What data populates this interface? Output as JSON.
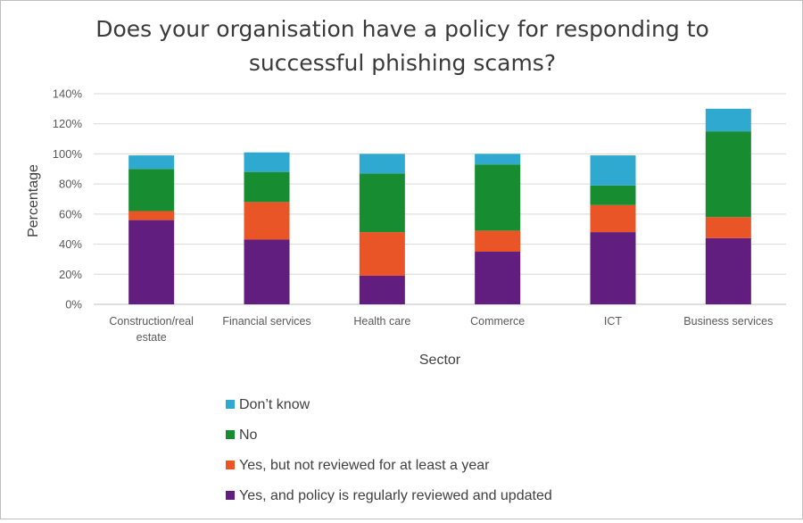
{
  "chart_data": {
    "type": "bar",
    "stacked": true,
    "title": "Does your organisation have a policy for responding to successful phishing scams?",
    "title_lines": [
      "Does your organisation have a policy for responding to",
      "successful phishing scams?"
    ],
    "xlabel": "Sector",
    "ylabel": "Percentage",
    "ylim": [
      0,
      140
    ],
    "ytick_step": 20,
    "ytick_format": "%",
    "grid": true,
    "legend_position": "bottom",
    "categories": [
      "Construction/real estate",
      "Financial services",
      "Health care",
      "Commerce",
      "ICT",
      "Business services"
    ],
    "category_lines": [
      [
        "Construction/real",
        "estate"
      ],
      [
        "Financial services"
      ],
      [
        "Health care"
      ],
      [
        "Commerce"
      ],
      [
        "ICT"
      ],
      [
        "Business services"
      ]
    ],
    "series": [
      {
        "name": "Yes, and policy is regularly reviewed and updated",
        "color": "#621e7e",
        "values": [
          56,
          43,
          19,
          35,
          48,
          44
        ]
      },
      {
        "name": "Yes, but not reviewed for at least a year",
        "color": "#e95526",
        "values": [
          6,
          25,
          29,
          14,
          18,
          14
        ]
      },
      {
        "name": "No",
        "color": "#178c31",
        "values": [
          28,
          20,
          39,
          44,
          13,
          57
        ]
      },
      {
        "name": "Don’t know",
        "color": "#30a9d0",
        "values": [
          9,
          13,
          13,
          7,
          20,
          15
        ]
      }
    ],
    "legend_order": [
      "Don’t know",
      "No",
      "Yes, but not reviewed for at least a year",
      "Yes, and policy is regularly reviewed and updated"
    ]
  }
}
